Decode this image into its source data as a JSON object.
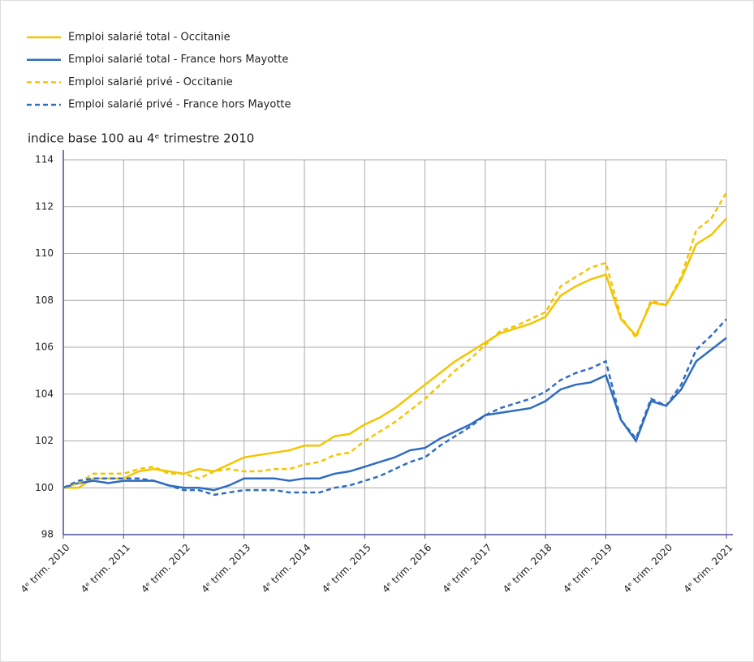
{
  "chart_data": {
    "type": "line",
    "axis_title": "indice base 100 au 4ᵉ trimestre 2010",
    "categories": [
      "4ᵉ trim. 2010",
      null,
      null,
      null,
      "4ᵉ trim. 2011",
      null,
      null,
      null,
      "4ᵉ trim. 2012",
      null,
      null,
      null,
      "4ᵉ trim. 2013",
      null,
      null,
      null,
      "4ᵉ trim. 2014",
      null,
      null,
      null,
      "4ᵉ trim. 2015",
      null,
      null,
      null,
      "4ᵉ trim. 2016",
      null,
      null,
      null,
      "4ᵉ trim. 2017",
      null,
      null,
      null,
      "4ᵉ trim. 2018",
      null,
      null,
      null,
      "4ᵉ trim. 2019",
      null,
      null,
      null,
      "4ᵉ trim. 2020",
      null,
      null,
      null,
      "4ᵉ trim. 2021"
    ],
    "series": [
      {
        "name": "Emploi salarié total - Occitanie",
        "color": "#f5c400",
        "linestyle": "solid",
        "values": [
          100.0,
          100.0,
          100.4,
          100.4,
          100.4,
          100.7,
          100.8,
          100.7,
          100.6,
          100.8,
          100.7,
          101.0,
          101.3,
          101.4,
          101.5,
          101.6,
          101.8,
          101.8,
          102.2,
          102.3,
          102.7,
          103.0,
          103.4,
          103.9,
          104.4,
          104.9,
          105.4,
          105.8,
          106.2,
          106.6,
          106.8,
          107.0,
          107.3,
          108.2,
          108.6,
          108.9,
          109.1,
          107.2,
          106.5,
          107.9,
          107.8,
          108.9,
          110.4,
          110.8,
          111.5
        ]
      },
      {
        "name": "Emploi salarié total - France hors Mayotte",
        "color": "#2f6cc0",
        "linestyle": "solid",
        "values": [
          100.0,
          100.2,
          100.3,
          100.2,
          100.3,
          100.3,
          100.3,
          100.1,
          100.0,
          100.0,
          99.9,
          100.1,
          100.4,
          100.4,
          100.4,
          100.3,
          100.4,
          100.4,
          100.6,
          100.7,
          100.9,
          101.1,
          101.3,
          101.6,
          101.7,
          102.1,
          102.4,
          102.7,
          103.1,
          103.2,
          103.3,
          103.4,
          103.7,
          104.2,
          104.4,
          104.5,
          104.8,
          102.9,
          102.0,
          103.7,
          103.5,
          104.2,
          105.4,
          105.9,
          106.4
        ]
      },
      {
        "name": "Emploi salarié privé - Occitanie",
        "color": "#f5c400",
        "linestyle": "dashed",
        "values": [
          100.0,
          100.2,
          100.6,
          100.6,
          100.6,
          100.8,
          100.9,
          100.6,
          100.6,
          100.4,
          100.7,
          100.8,
          100.7,
          100.7,
          100.8,
          100.8,
          101.0,
          101.1,
          101.4,
          101.5,
          102.0,
          102.4,
          102.8,
          103.3,
          103.8,
          104.4,
          105.0,
          105.5,
          106.1,
          106.7,
          106.9,
          107.2,
          107.5,
          108.6,
          109.0,
          109.4,
          109.6,
          107.3,
          106.4,
          108.0,
          107.8,
          109.0,
          111.0,
          111.5,
          112.6
        ]
      },
      {
        "name": "Emploi salarié privé - France hors Mayotte",
        "color": "#2f6cc0",
        "linestyle": "dashed",
        "values": [
          100.0,
          100.3,
          100.4,
          100.4,
          100.4,
          100.4,
          100.3,
          100.1,
          99.9,
          99.9,
          99.7,
          99.8,
          99.9,
          99.9,
          99.9,
          99.8,
          99.8,
          99.8,
          100.0,
          100.1,
          100.3,
          100.5,
          100.8,
          101.1,
          101.3,
          101.8,
          102.2,
          102.6,
          103.1,
          103.4,
          103.6,
          103.8,
          104.1,
          104.6,
          104.9,
          105.1,
          105.4,
          102.9,
          102.1,
          103.8,
          103.5,
          104.4,
          105.9,
          106.5,
          107.2
        ]
      }
    ],
    "ylim": [
      98,
      114
    ],
    "yticks": [
      98,
      100,
      102,
      104,
      106,
      108,
      110,
      112,
      114
    ],
    "grid": true
  }
}
